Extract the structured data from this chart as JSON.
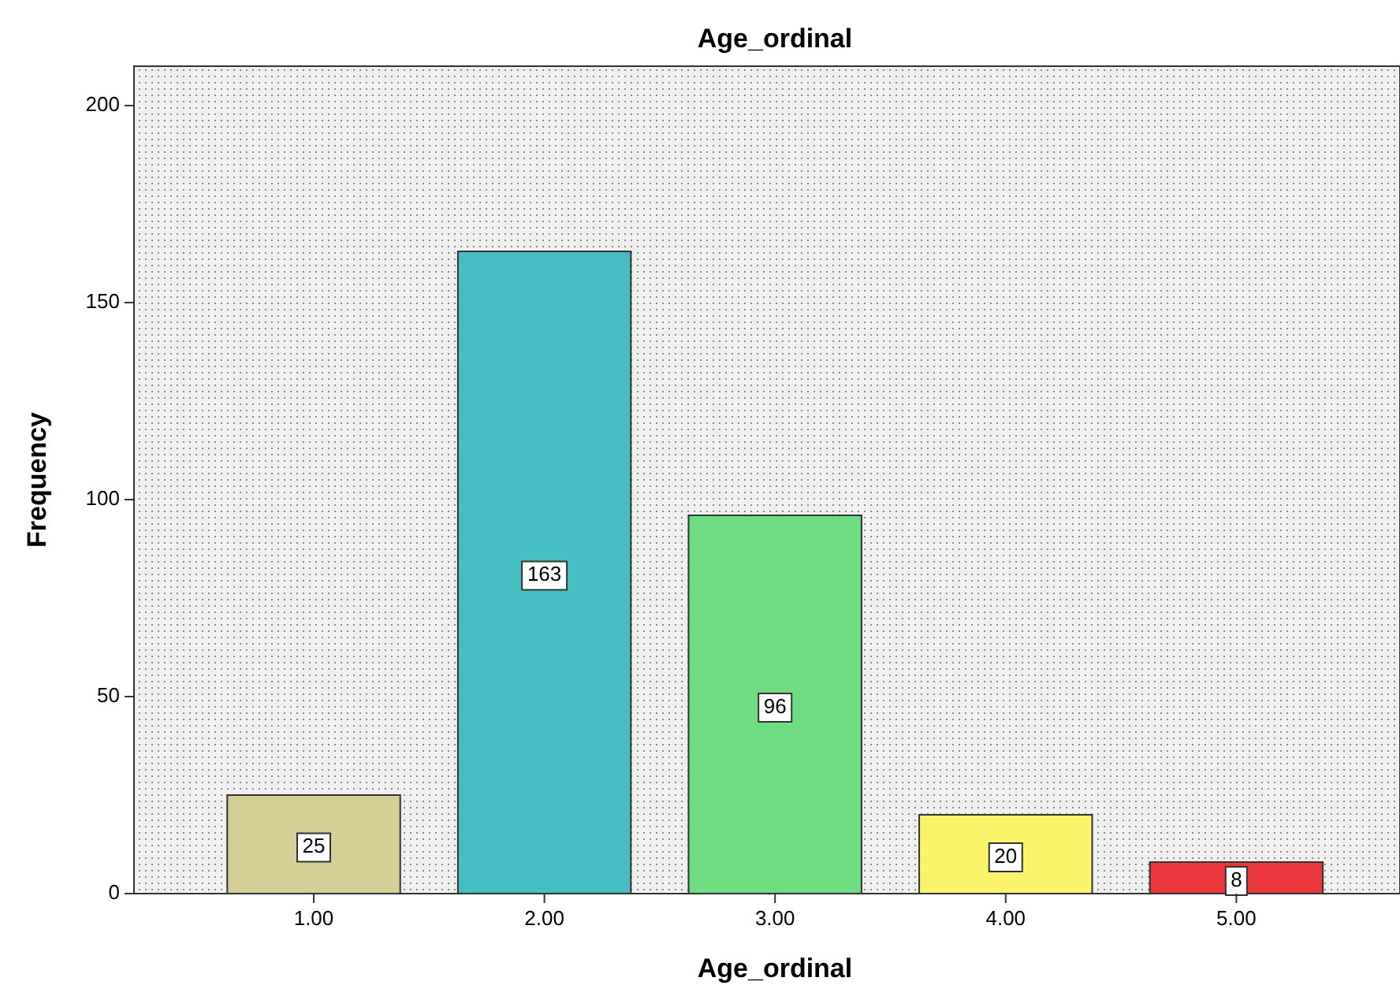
{
  "chart_data": {
    "type": "bar",
    "title": "Age_ordinal",
    "xlabel": "Age_ordinal",
    "ylabel": "Frequency",
    "categories": [
      "1.00",
      "2.00",
      "3.00",
      "4.00",
      "5.00"
    ],
    "values": [
      25,
      163,
      96,
      20,
      8
    ],
    "colors": [
      "#d4cf96",
      "#45bfc1",
      "#6fdc82",
      "#fbf36a",
      "#e8363a"
    ],
    "ylim": [
      0,
      210
    ],
    "yticks": [
      0,
      50,
      100,
      150,
      200
    ],
    "data_labels": true
  }
}
